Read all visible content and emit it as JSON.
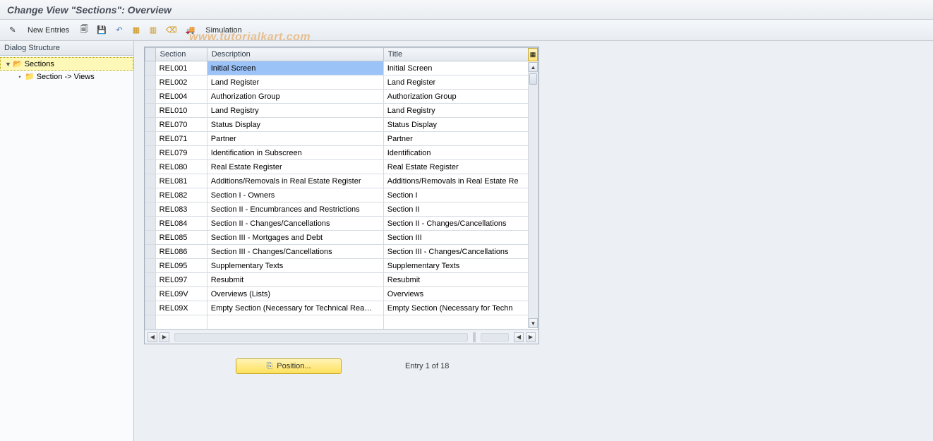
{
  "title": "Change View \"Sections\": Overview",
  "toolbar": {
    "new_entries": "New Entries",
    "simulation": "Simulation"
  },
  "sidebar": {
    "title": "Dialog Structure",
    "root": "Sections",
    "child": "Section -> Views"
  },
  "columns": {
    "section": "Section",
    "description": "Description",
    "title": "Title"
  },
  "rows": [
    {
      "section": "REL001",
      "description": "Initial Screen",
      "title": "Initial Screen",
      "selected": true
    },
    {
      "section": "REL002",
      "description": "Land Register",
      "title": "Land Register"
    },
    {
      "section": "REL004",
      "description": "Authorization Group",
      "title": "Authorization Group"
    },
    {
      "section": "REL010",
      "description": "Land Registry",
      "title": "Land Registry"
    },
    {
      "section": "REL070",
      "description": "Status Display",
      "title": "Status Display"
    },
    {
      "section": "REL071",
      "description": "Partner",
      "title": "Partner"
    },
    {
      "section": "REL079",
      "description": "Identification in Subscreen",
      "title": "Identification"
    },
    {
      "section": "REL080",
      "description": "Real Estate Register",
      "title": "Real Estate Register"
    },
    {
      "section": "REL081",
      "description": "Additions/Removals in Real Estate Register",
      "title": "Additions/Removals in Real Estate Re"
    },
    {
      "section": "REL082",
      "description": "Section I - Owners",
      "title": "Section I"
    },
    {
      "section": "REL083",
      "description": "Section II - Encumbrances and Restrictions",
      "title": "Section II"
    },
    {
      "section": "REL084",
      "description": "Section II - Changes/Cancellations",
      "title": "Section II - Changes/Cancellations"
    },
    {
      "section": "REL085",
      "description": "Section III - Mortgages and Debt",
      "title": "Section III"
    },
    {
      "section": "REL086",
      "description": "Section III - Changes/Cancellations",
      "title": "Section III - Changes/Cancellations"
    },
    {
      "section": "REL095",
      "description": "Supplementary Texts",
      "title": "Supplementary Texts"
    },
    {
      "section": "REL097",
      "description": "Resubmit",
      "title": "Resubmit"
    },
    {
      "section": "REL09V",
      "description": "Overviews (Lists)",
      "title": "Overviews"
    },
    {
      "section": "REL09X",
      "description": "Empty Section (Necessary for Technical Rea…",
      "title": "Empty Section (Necessary for Techn"
    }
  ],
  "blank_rows": 1,
  "footer": {
    "position_btn": "Position...",
    "entry_text": "Entry 1 of 18"
  },
  "watermark": "www.tutorialkart.com",
  "colors": {
    "header_bg": "#e9edf1",
    "selected_bg": "#9cc3f7",
    "tree_sel_bg": "#fef8b8",
    "yellow_btn": "#ffe15c"
  }
}
